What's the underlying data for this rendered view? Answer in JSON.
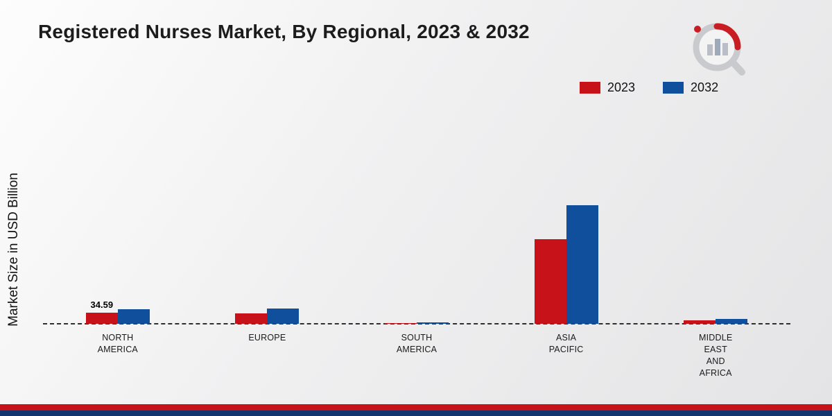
{
  "title": "Registered Nurses Market, By Regional, 2023 & 2032",
  "ylabel": "Market Size in USD Billion",
  "legend": [
    {
      "label": "2023",
      "color": "#c8121a"
    },
    {
      "label": "2032",
      "color": "#0f4f9c"
    }
  ],
  "logo": {
    "name": "market-research-future-logo"
  },
  "footer": {
    "red_color": "#c8121a",
    "navy_color": "#12356f"
  },
  "chart_data": {
    "type": "bar",
    "categories": [
      "NORTH AMERICA",
      "EUROPE",
      "SOUTH AMERICA",
      "ASIA PACIFIC",
      "MIDDLE EAST AND AFRICA"
    ],
    "series": [
      {
        "name": "2023",
        "color": "#c8121a",
        "values": [
          34.59,
          32,
          3,
          265,
          10
        ]
      },
      {
        "name": "2032",
        "color": "#0f4f9c",
        "values": [
          45,
          47,
          4,
          370,
          16
        ]
      }
    ],
    "annotations": [
      {
        "series": "2023",
        "category": "NORTH AMERICA",
        "text": "34.59"
      }
    ],
    "title": "Registered Nurses Market, By Regional, 2023 & 2032",
    "xlabel": "",
    "ylabel": "Market Size in USD Billion",
    "ylim": [
      0,
      400
    ],
    "grid": false,
    "legend_position": "top-right",
    "baseline_style": "dashed"
  }
}
